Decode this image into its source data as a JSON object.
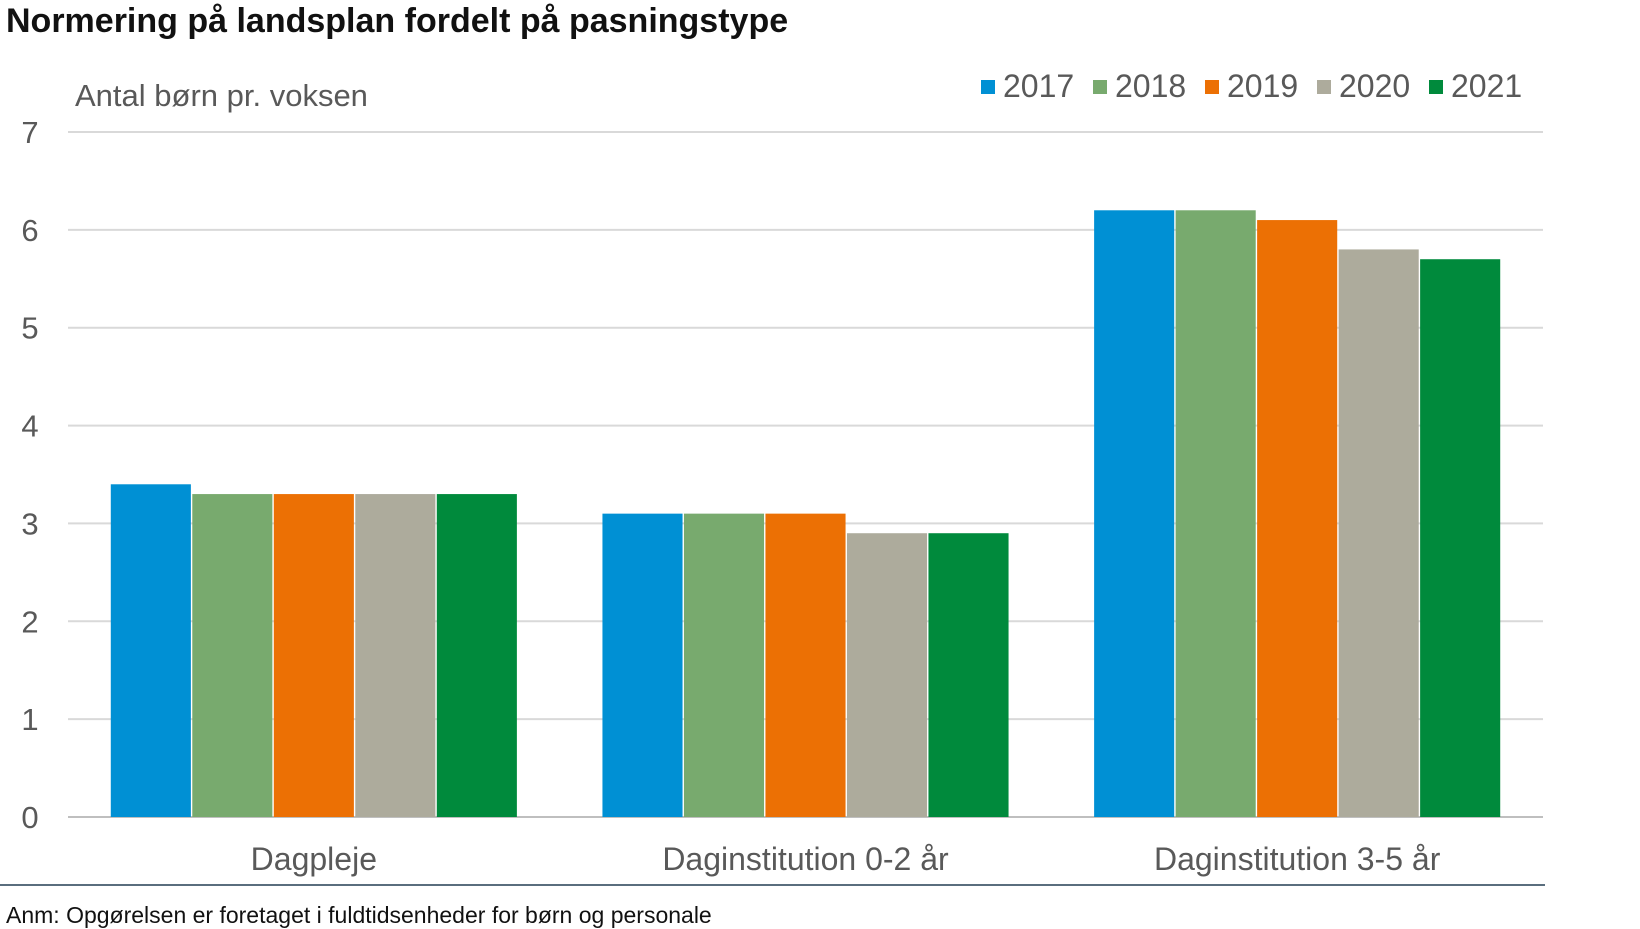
{
  "title": "Normering på landsplan fordelt på pasningstype",
  "footnote": "Anm: Opgørelsen er foretaget i fuldtidsenheder for børn og personale",
  "chart_data": {
    "type": "bar",
    "title": "Normering på landsplan fordelt på pasningstype",
    "ylabel": "Antal børn pr. voksen",
    "xlabel": "",
    "categories": [
      "Dagpleje",
      "Daginstitution 0-2 år",
      "Daginstitution 3-5 år"
    ],
    "ylim": [
      0,
      7
    ],
    "yticks": [
      0,
      1,
      2,
      3,
      4,
      5,
      6,
      7
    ],
    "grid": true,
    "legend_position": "top-right",
    "series": [
      {
        "name": "2017",
        "color": "#0090D4",
        "values": [
          3.4,
          3.1,
          6.2
        ]
      },
      {
        "name": "2018",
        "color": "#78AA6E",
        "values": [
          3.3,
          3.1,
          6.2
        ]
      },
      {
        "name": "2019",
        "color": "#EC7004",
        "values": [
          3.3,
          3.1,
          6.1
        ]
      },
      {
        "name": "2020",
        "color": "#ADAB9C",
        "values": [
          3.3,
          2.9,
          5.8
        ]
      },
      {
        "name": "2021",
        "color": "#008A3C",
        "values": [
          3.3,
          2.9,
          5.7
        ]
      }
    ]
  }
}
